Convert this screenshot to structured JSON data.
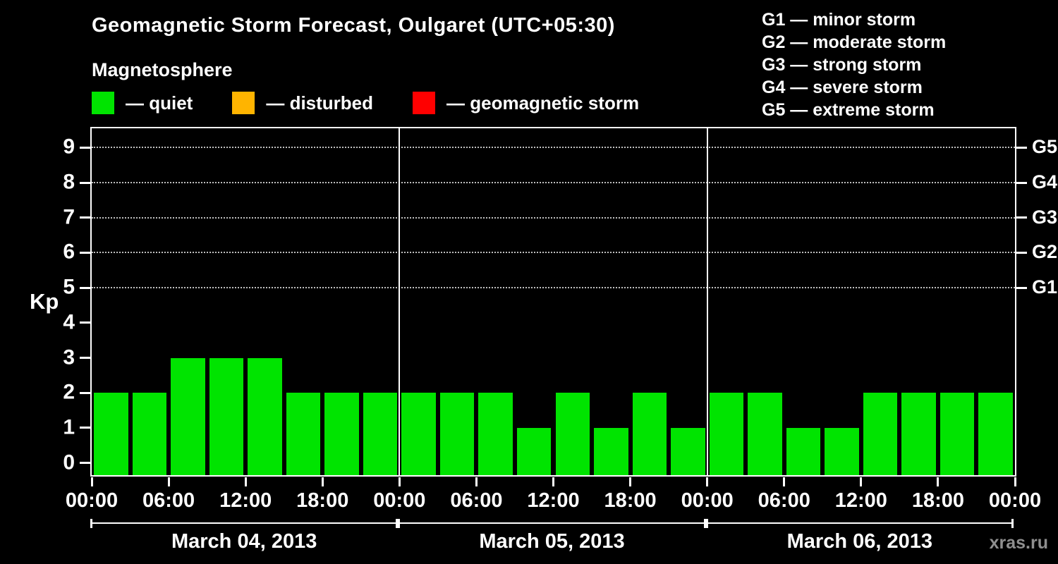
{
  "title": "Geomagnetic Storm Forecast, Oulgaret (UTC+05:30)",
  "subtitle": "Magnetosphere",
  "kp_axis_label": "Kp",
  "watermark": "xras.ru",
  "colors": {
    "background": "#000000",
    "axis": "#ffffff",
    "quiet": "#00e400",
    "disturbed": "#ffb400",
    "storm": "#ff0000",
    "watermark_text": "#8f8f8f"
  },
  "legend": [
    {
      "name": "quiet",
      "label": "— quiet",
      "color": "#00e400"
    },
    {
      "name": "disturbed",
      "label": "— disturbed",
      "color": "#ffb400"
    },
    {
      "name": "storm",
      "label": "— geomagnetic storm",
      "color": "#ff0000"
    }
  ],
  "storm_scale": [
    "G1 — minor storm",
    "G2 — moderate storm",
    "G3 — strong storm",
    "G4 — severe storm",
    "G5 — extreme storm"
  ],
  "chart_data": {
    "type": "bar",
    "title": "Geomagnetic Storm Forecast, Oulgaret (UTC+05:30)",
    "ylabel": "Kp",
    "ylim": [
      0,
      9
    ],
    "y_ticks": [
      0,
      1,
      2,
      3,
      4,
      5,
      6,
      7,
      8,
      9
    ],
    "right_axis": [
      {
        "kp": 5,
        "label": "G1"
      },
      {
        "kp": 6,
        "label": "G2"
      },
      {
        "kp": 7,
        "label": "G3"
      },
      {
        "kp": 8,
        "label": "G4"
      },
      {
        "kp": 9,
        "label": "G5"
      }
    ],
    "dotted_gridlines_at_kp": [
      5,
      6,
      7,
      8,
      9
    ],
    "x_tick_labels": [
      "00:00",
      "06:00",
      "12:00",
      "18:00",
      "00:00",
      "06:00",
      "12:00",
      "18:00",
      "00:00",
      "06:00",
      "12:00",
      "18:00",
      "00:00"
    ],
    "interval_hours": 3,
    "bar_color": "#00e400",
    "grid": "dotted horizontal lines at G storm levels",
    "legend_position": "top",
    "days": [
      {
        "date": "March 04, 2013",
        "kp_values": [
          2,
          2,
          3,
          3,
          3,
          2,
          2,
          2
        ]
      },
      {
        "date": "March 05, 2013",
        "kp_values": [
          2,
          2,
          2,
          1,
          2,
          1,
          2,
          1
        ]
      },
      {
        "date": "March 06, 2013",
        "kp_values": [
          2,
          2,
          1,
          1,
          2,
          2,
          2,
          2
        ]
      }
    ]
  }
}
